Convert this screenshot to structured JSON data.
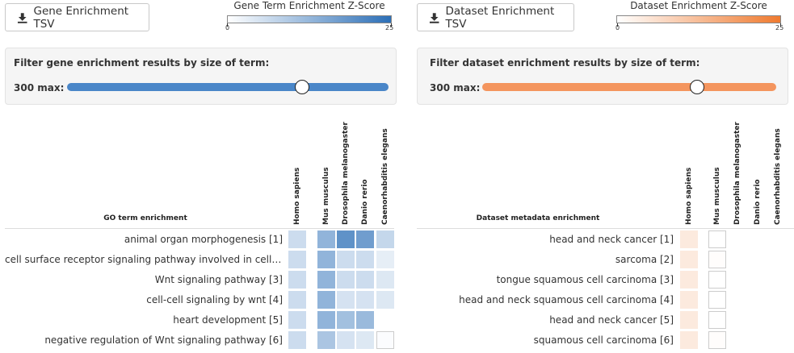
{
  "gene": {
    "download_label": "Gene Enrichment TSV",
    "legend_title": "Gene Term Enrichment Z-Score",
    "legend_min": "0",
    "legend_max": "25",
    "filter_title": "Filter gene enrichment results by size of term:",
    "filter_value_label": "300 max:",
    "slider_fraction": 0.73,
    "track_color": "#4a86c8",
    "section_header": "GO term enrichment",
    "columns": [
      "Homo sapiens",
      "Mus musculus",
      "Drosophila melanogaster",
      "Danio rerio",
      "Caenorhabditis elegans"
    ],
    "rows": [
      {
        "label": "animal organ morphogenesis [1]",
        "z": [
          6,
          13,
          19,
          17,
          7
        ]
      },
      {
        "label": "cell surface receptor signaling pathway involved in cell-cel…",
        "z": [
          6,
          13,
          6,
          6,
          3
        ]
      },
      {
        "label": "Wnt signaling pathway [3]",
        "z": [
          6,
          13,
          6,
          6,
          4
        ]
      },
      {
        "label": "cell-cell signaling by wnt [4]",
        "z": [
          6,
          13,
          5,
          5,
          4
        ]
      },
      {
        "label": "heart development [5]",
        "z": [
          6,
          13,
          11,
          12,
          null
        ]
      },
      {
        "label": "negative regulation of Wnt signaling pathway [6]",
        "z": [
          6,
          10,
          5,
          4,
          0.5
        ]
      }
    ]
  },
  "dataset": {
    "download_label": "Dataset Enrichment TSV",
    "legend_title": "Dataset Enrichment Z-Score",
    "legend_min": "0",
    "legend_max": "25",
    "filter_title": "Filter dataset enrichment results by size of term:",
    "filter_value_label": "300 max:",
    "slider_fraction": 0.73,
    "track_color": "#f4955e",
    "section_header": "Dataset metadata enrichment",
    "columns": [
      "Homo sapiens",
      "Mus musculus",
      "Drosophila melanogaster",
      "Danio rerio",
      "Caenorhabditis elegans"
    ],
    "rows": [
      {
        "label": "head and neck cancer [1]",
        "z": [
          4,
          0,
          null,
          null,
          null
        ]
      },
      {
        "label": "sarcoma [2]",
        "z": [
          4,
          0.4,
          null,
          null,
          null
        ]
      },
      {
        "label": "tongue squamous cell carcinoma [3]",
        "z": [
          4,
          0,
          null,
          null,
          null
        ]
      },
      {
        "label": "head and neck squamous cell carcinoma [4]",
        "z": [
          4,
          0,
          null,
          null,
          null
        ]
      },
      {
        "label": "head and neck cancer [5]",
        "z": [
          4,
          0,
          null,
          null,
          null
        ]
      },
      {
        "label": "squamous cell carcinoma [6]",
        "z": [
          4,
          0.4,
          null,
          null,
          null
        ]
      }
    ]
  },
  "colors": {
    "gene_low": "#ffffff",
    "gene_high": "#2c6fb7",
    "dataset_low": "#ffffff",
    "dataset_high": "#ef7a2f"
  },
  "icons": {
    "download": "download-icon"
  }
}
